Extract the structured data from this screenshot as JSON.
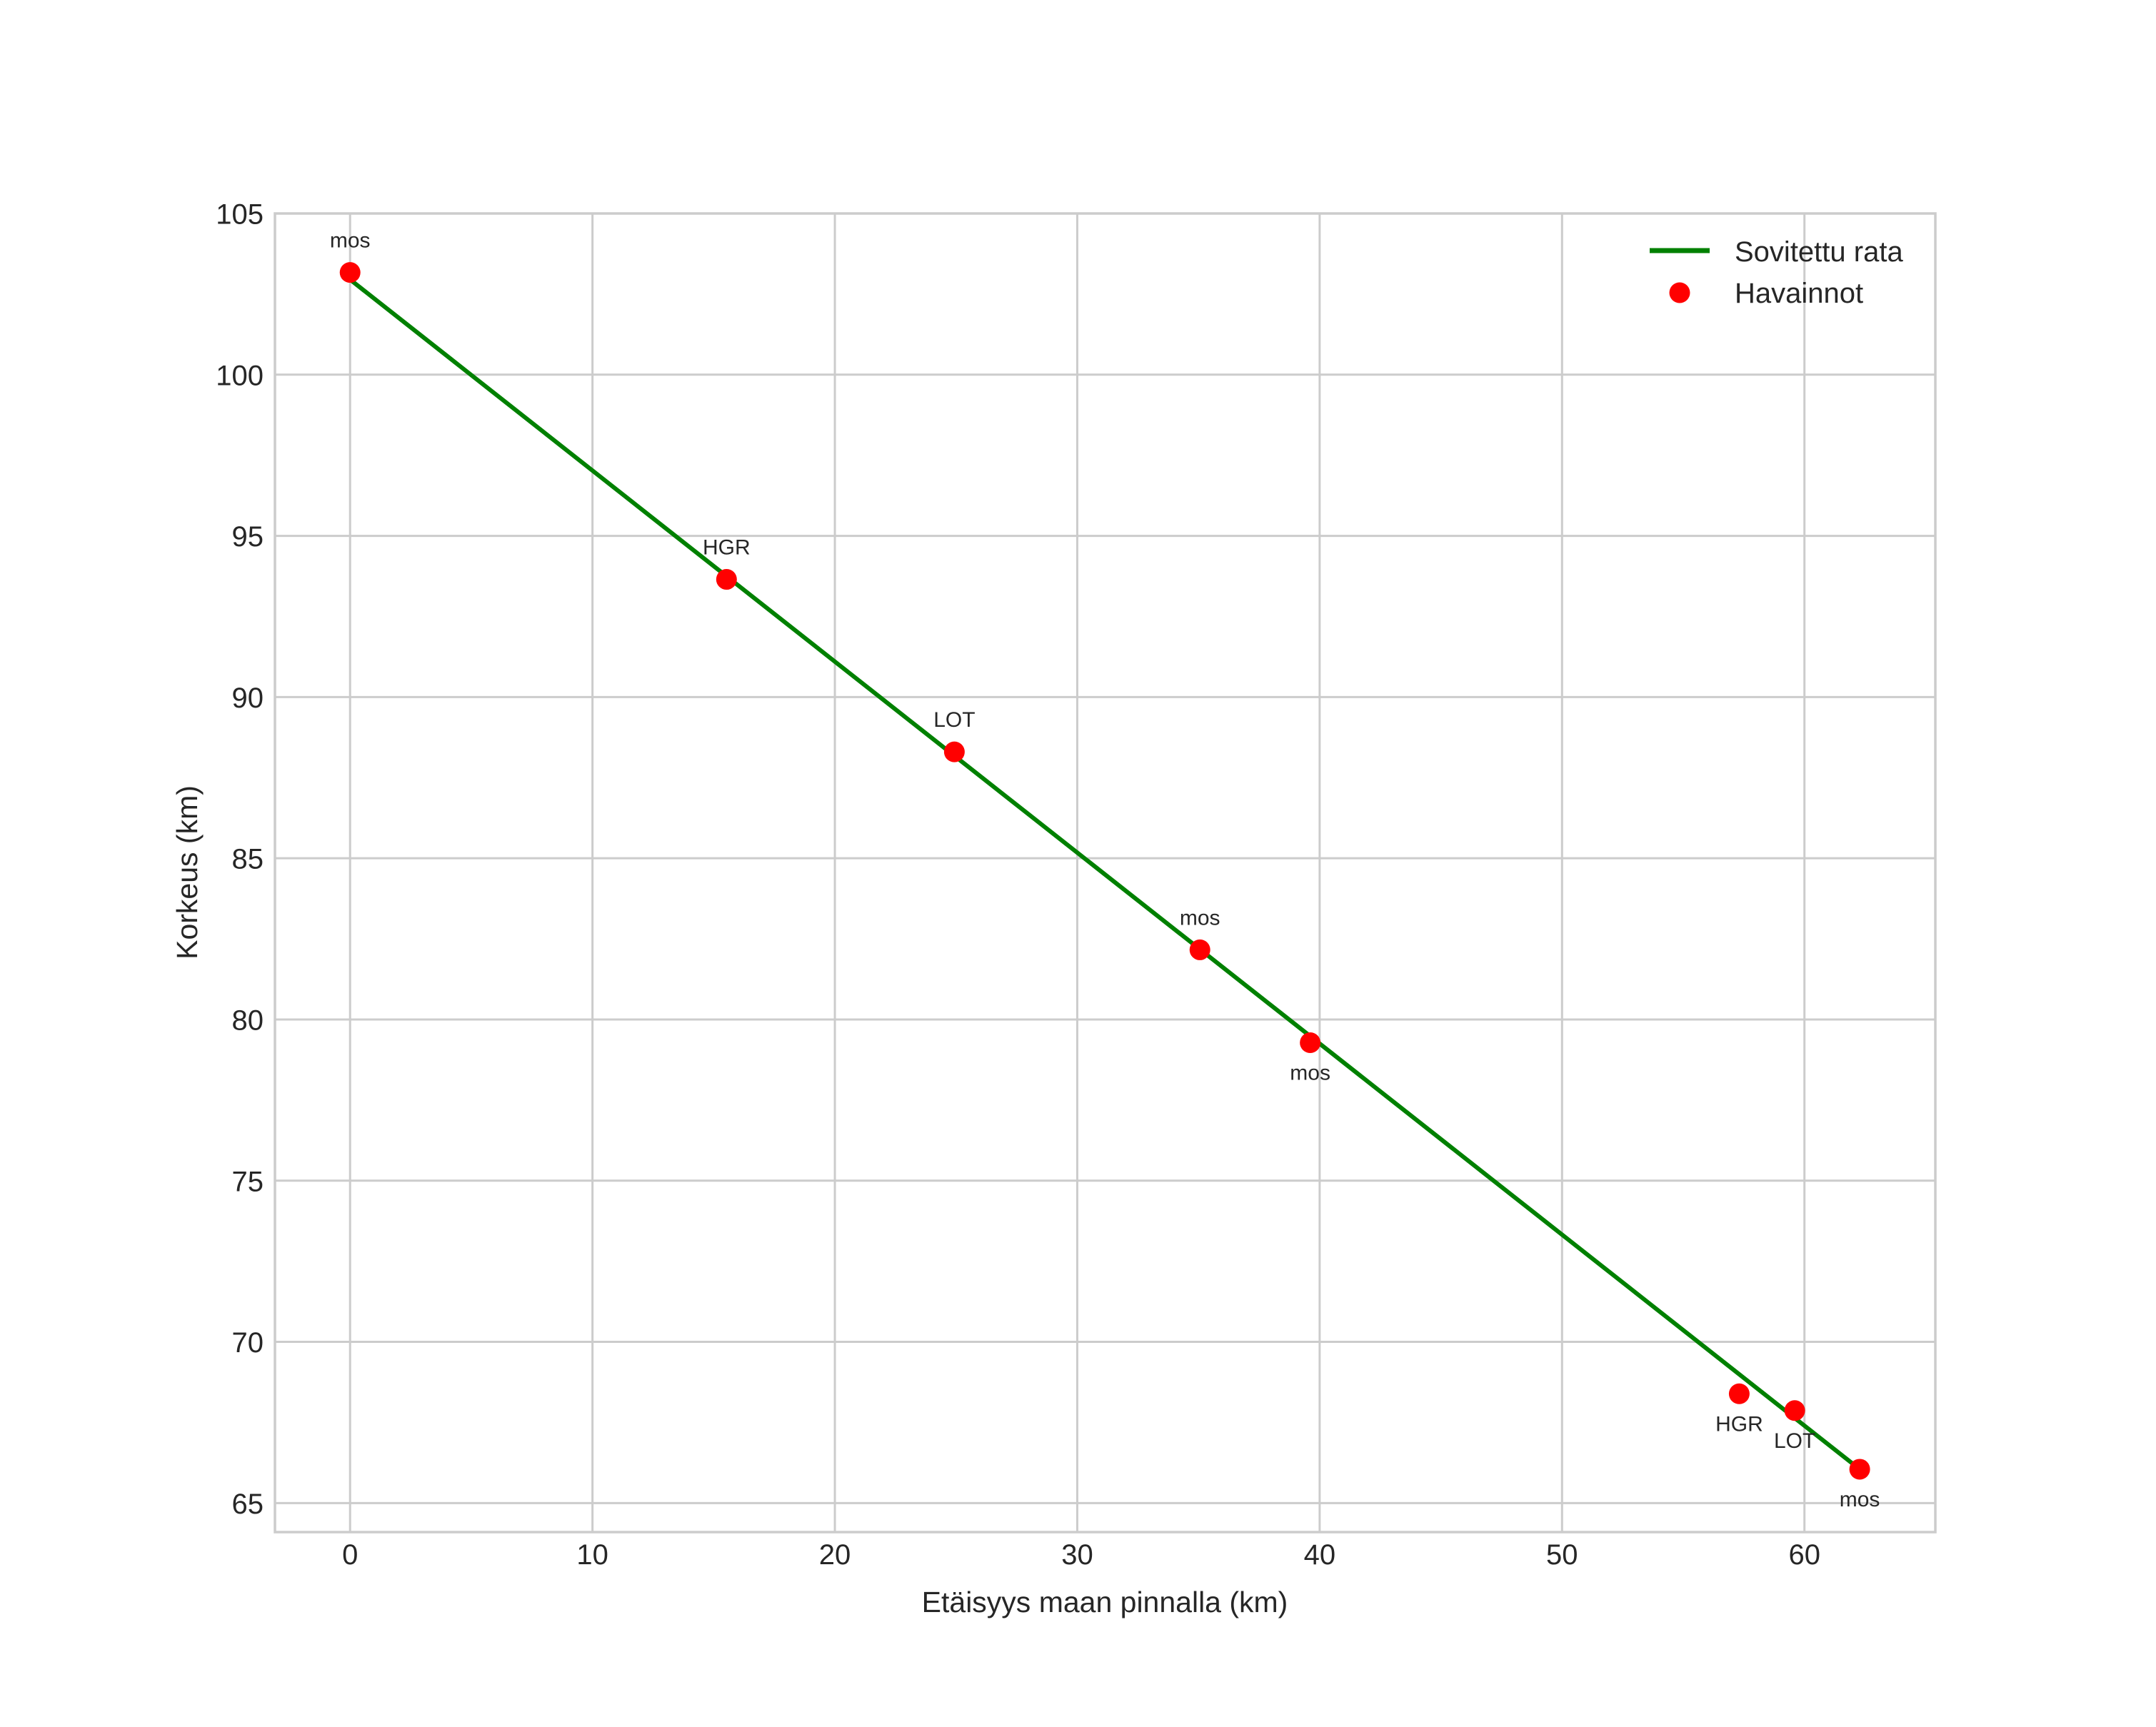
{
  "chart_data": {
    "type": "scatter",
    "title": "",
    "xlabel": "Etäisyys maan pinnalla (km)",
    "ylabel": "Korkeus (km)",
    "xlim": [
      -3.1,
      65.4
    ],
    "ylim": [
      64.1,
      105
    ],
    "xticks": [
      0,
      10,
      20,
      30,
      40,
      50,
      60
    ],
    "yticks": [
      65,
      70,
      75,
      80,
      85,
      90,
      95,
      100,
      105
    ],
    "grid": true,
    "legend": {
      "position": "upper right",
      "entries": [
        {
          "label": "Sovitettu rata",
          "kind": "line",
          "color": "#008000"
        },
        {
          "label": "Havainnot",
          "kind": "marker",
          "color": "#ff0000"
        }
      ]
    },
    "series": [
      {
        "name": "Sovitettu rata",
        "type": "line",
        "color": "#008000",
        "x": [
          0.0,
          62.28
        ],
        "y": [
          102.95,
          66.05
        ]
      },
      {
        "name": "Havainnot",
        "type": "scatter",
        "color": "#ff0000",
        "points": [
          {
            "x": 0.0,
            "y": 103.17,
            "label": "mos",
            "label_pos": "above"
          },
          {
            "x": 15.53,
            "y": 93.65,
            "label": "HGR",
            "label_pos": "above"
          },
          {
            "x": 24.93,
            "y": 88.3,
            "label": "LOT",
            "label_pos": "above"
          },
          {
            "x": 35.06,
            "y": 82.16,
            "label": "mos",
            "label_pos": "above"
          },
          {
            "x": 39.61,
            "y": 79.28,
            "label": "mos",
            "label_pos": "below"
          },
          {
            "x": 57.31,
            "y": 68.39,
            "label": "HGR",
            "label_pos": "below"
          },
          {
            "x": 59.6,
            "y": 67.87,
            "label": "LOT",
            "label_pos": "below"
          },
          {
            "x": 62.28,
            "y": 66.05,
            "label": "mos",
            "label_pos": "below"
          }
        ]
      }
    ]
  },
  "style": {
    "grid_color": "#cccccc",
    "spine_color": "#cccccc",
    "text_color": "#262626",
    "background": "#ffffff"
  }
}
